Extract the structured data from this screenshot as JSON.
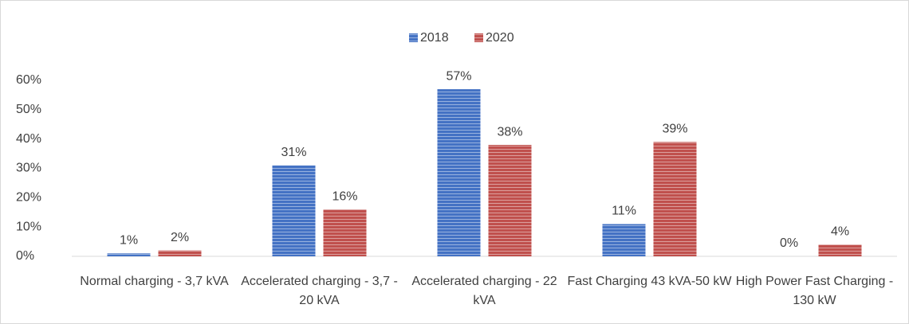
{
  "chart_data": {
    "type": "bar",
    "categories": [
      "Normal charging - 3,7 kVA",
      "Accelerated charging - 3,7 - 20 kVA",
      "Accelerated charging - 22 kVA",
      "Fast Charging 43 kVA-50 kW",
      "High Power Fast Charging - 130 kW"
    ],
    "series": [
      {
        "name": "2018",
        "color": "#4472c4",
        "values": [
          1,
          31,
          57,
          11,
          0
        ],
        "value_labels": [
          "1%",
          "31%",
          "57%",
          "11%",
          "0%"
        ]
      },
      {
        "name": "2020",
        "color": "#c0504d",
        "values": [
          2,
          16,
          38,
          39,
          4
        ],
        "value_labels": [
          "2%",
          "16%",
          "38%",
          "39%",
          "4%"
        ]
      }
    ],
    "ylim": [
      0,
      60
    ],
    "yticks": [
      {
        "value": 0,
        "label": "0%"
      },
      {
        "value": 10,
        "label": "10%"
      },
      {
        "value": 20,
        "label": "20%"
      },
      {
        "value": 30,
        "label": "30%"
      },
      {
        "value": 40,
        "label": "40%"
      },
      {
        "value": 50,
        "label": "50%"
      },
      {
        "value": 60,
        "label": "60%"
      }
    ],
    "legend": "top"
  }
}
